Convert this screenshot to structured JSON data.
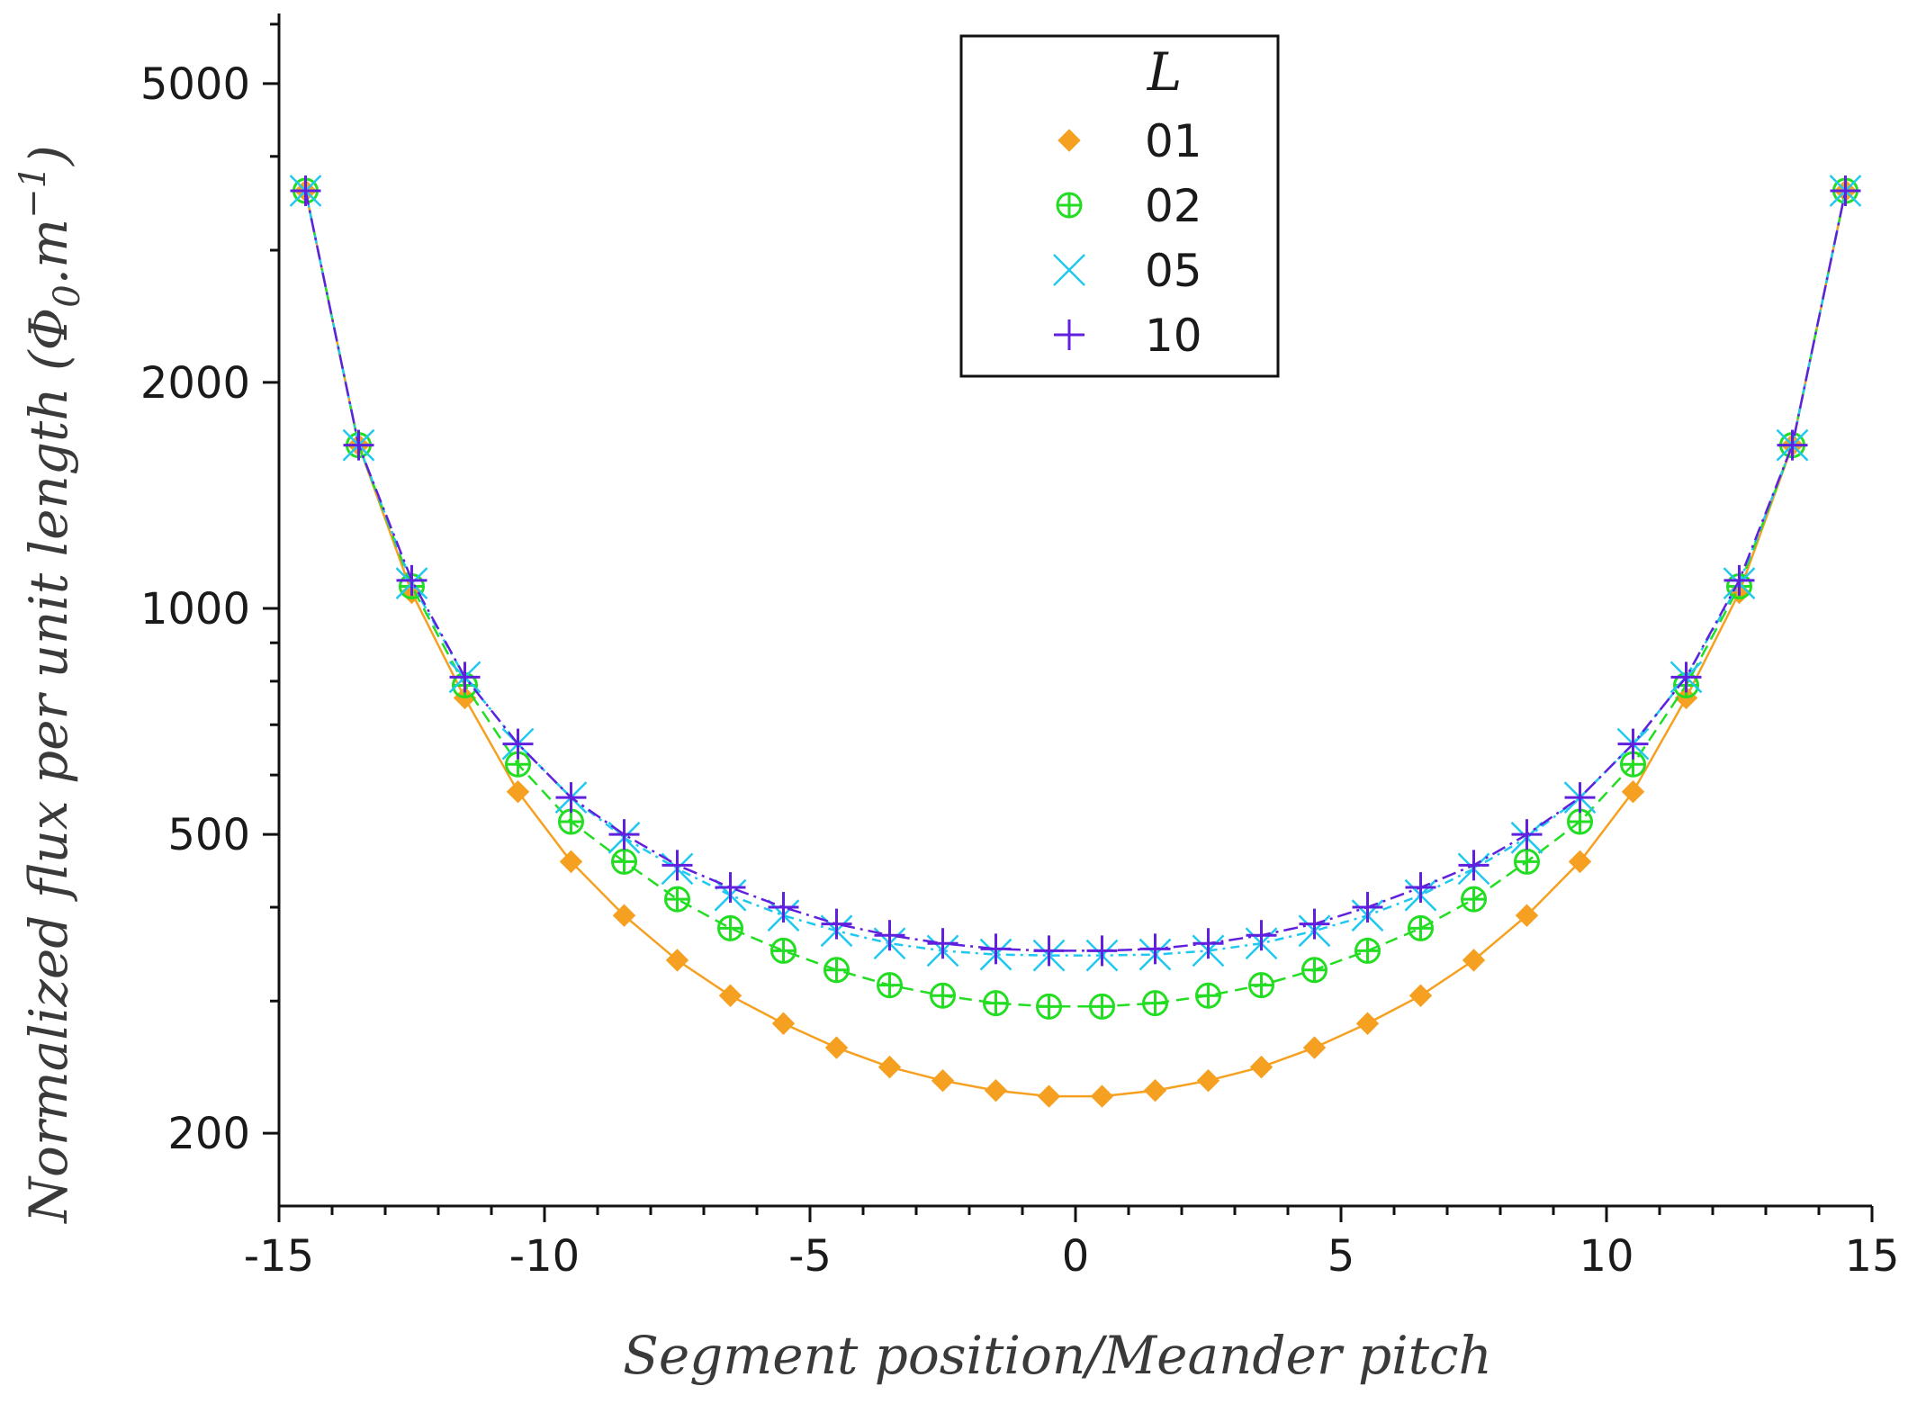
{
  "chart_data": {
    "type": "line",
    "xlabel": "Segment position/Meander pitch",
    "ylabel": "Normalized flux per unit length (Φ",
    "ylabel_sub": "0",
    "ylabel_unit": ".m",
    "ylabel_sup": "−1",
    "ylabel_close": ")",
    "yscale": "log",
    "xlim": [
      -15,
      15
    ],
    "ylim": [
      160,
      6200
    ],
    "xticks": [
      "-15",
      "-10",
      "-5",
      "0",
      "5",
      "10",
      "15"
    ],
    "xtick_values": [
      -15,
      -10,
      -5,
      0,
      5,
      10,
      15
    ],
    "yticks": [
      "200",
      "500",
      "1000",
      "2000",
      "5000"
    ],
    "ytick_values": [
      200,
      500,
      1000,
      2000,
      5000
    ],
    "legend_title": "L",
    "legend_position": "top-center",
    "x": [
      -14.5,
      -13.5,
      -12.5,
      -11.5,
      -10.5,
      -9.5,
      -8.5,
      -7.5,
      -6.5,
      -5.5,
      -4.5,
      -3.5,
      -2.5,
      -1.5,
      -0.5,
      0.5,
      1.5,
      2.5,
      3.5,
      4.5,
      5.5,
      6.5,
      7.5,
      8.5,
      9.5,
      10.5,
      11.5,
      12.5,
      13.5,
      14.5
    ],
    "series": [
      {
        "name": "01",
        "marker": "diamond",
        "color": "#f5a020",
        "values": [
          3600,
          1650,
          1050,
          760,
          570,
          460,
          390,
          340,
          305,
          280,
          260,
          245,
          235,
          228,
          224,
          224,
          228,
          235,
          245,
          260,
          280,
          305,
          340,
          390,
          460,
          570,
          760,
          1050,
          1650,
          3600
        ]
      },
      {
        "name": "02",
        "marker": "circle-plus",
        "color": "#22dd22",
        "values": [
          3600,
          1650,
          1070,
          790,
          620,
          520,
          460,
          410,
          375,
          350,
          330,
          315,
          305,
          298,
          295,
          295,
          298,
          305,
          315,
          330,
          350,
          375,
          410,
          460,
          520,
          620,
          790,
          1070,
          1650,
          3600
        ]
      },
      {
        "name": "05",
        "marker": "x",
        "color": "#20c8f0",
        "values": [
          3600,
          1650,
          1080,
          810,
          660,
          560,
          495,
          450,
          415,
          390,
          372,
          358,
          350,
          346,
          345,
          345,
          346,
          350,
          358,
          372,
          390,
          415,
          450,
          495,
          560,
          660,
          810,
          1080,
          1650,
          3600
        ]
      },
      {
        "name": "10",
        "marker": "plus",
        "color": "#6020dd",
        "values": [
          3600,
          1650,
          1090,
          810,
          660,
          560,
          500,
          455,
          425,
          400,
          380,
          367,
          358,
          352,
          350,
          350,
          352,
          358,
          367,
          380,
          400,
          425,
          455,
          500,
          560,
          660,
          810,
          1090,
          1650,
          3600
        ]
      }
    ]
  }
}
